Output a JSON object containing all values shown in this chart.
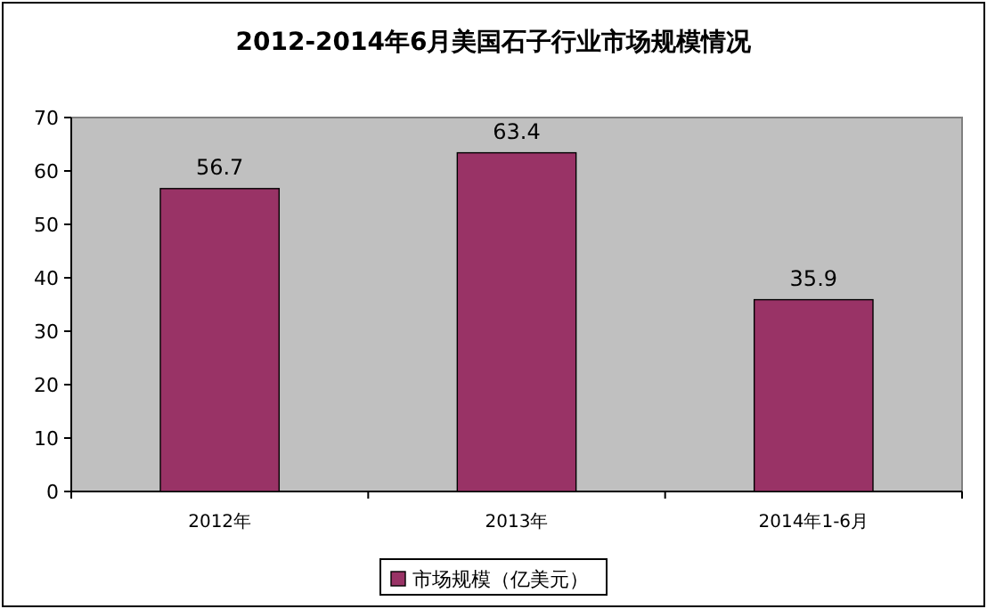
{
  "chart_data": {
    "type": "bar",
    "title": "2012-2014年6月美国石子行业市场规模情况",
    "categories": [
      "2012年",
      "2013年",
      "2014年1-6月"
    ],
    "series": [
      {
        "name": "市场规模（亿美元）",
        "color": "#993366",
        "values": [
          56.7,
          63.4,
          35.9
        ]
      }
    ],
    "ylim": [
      0,
      70
    ],
    "yticks": [
      0,
      10,
      20,
      30,
      40,
      50,
      60,
      70
    ],
    "data_labels": true,
    "legend": "bottom"
  }
}
